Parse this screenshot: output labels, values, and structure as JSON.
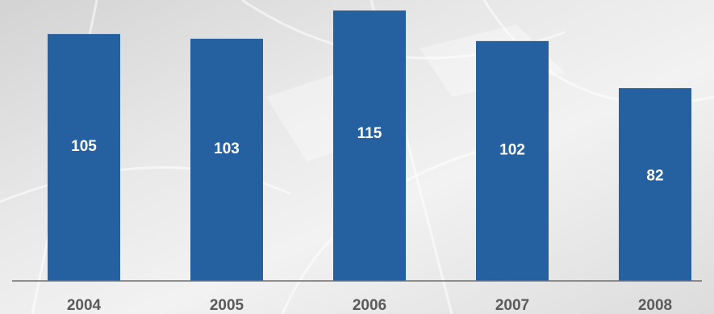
{
  "chart_data": {
    "type": "bar",
    "title": "",
    "xlabel": "",
    "ylabel": "",
    "categories": [
      "2004",
      "2005",
      "2006",
      "2007",
      "2008"
    ],
    "values": [
      105,
      103,
      115,
      102,
      82
    ],
    "data_labels": [
      "105",
      "103",
      "115",
      "102",
      "82"
    ],
    "ylim": [
      0,
      115
    ],
    "grid": false,
    "legend": "none"
  },
  "colors": {
    "bar": "#2560A0",
    "bar_label": "#FFFFFF",
    "tick_label": "#5A5A5A",
    "axis_line": "#6E6E6E",
    "background": "#E6E6E6"
  }
}
